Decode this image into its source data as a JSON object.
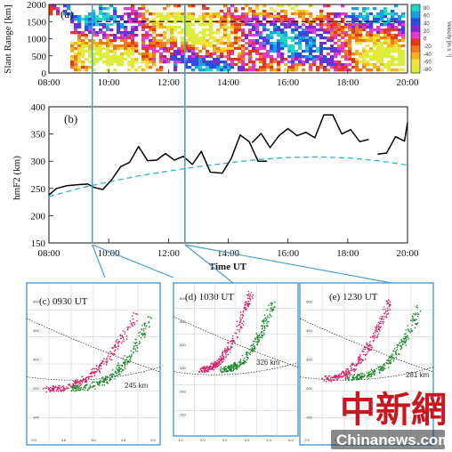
{
  "chart_data": [
    {
      "panel": "(a)",
      "type": "heatmap",
      "ylabel": "Slant Range [km]",
      "xlim": [
        8,
        20
      ],
      "ylim": [
        0,
        2000
      ],
      "x_ticks": [
        "08:00",
        "10:00",
        "12:00",
        "14:00",
        "16:00",
        "18:00",
        "20:00"
      ],
      "y_ticks": [
        "0",
        "500",
        "1000",
        "1500",
        "2000"
      ],
      "colorbar": {
        "label": "Velocity [m s⁻¹]",
        "ticks": [
          "80",
          "60",
          "40",
          "20",
          "0",
          "-20",
          "-40",
          "-60",
          "-80"
        ],
        "colors": [
          "#1fd6c2",
          "#18a0e6",
          "#2a4fe0",
          "#7a2ad6",
          "#e23ad0",
          "#e8361c",
          "#f07a18",
          "#f5b41e",
          "#f2e23a",
          "#d8f03c"
        ]
      },
      "reference_line": 1500
    },
    {
      "panel": "(b)",
      "type": "line",
      "ylabel": "hmF2 (km)",
      "xlabel": "Time UT",
      "xlim": [
        8,
        20
      ],
      "ylim": [
        150,
        400
      ],
      "x_ticks": [
        "08:00",
        "10:00",
        "12:00",
        "14:00",
        "16:00",
        "18:00",
        "20:00"
      ],
      "y_ticks": [
        "150",
        "200",
        "250",
        "300",
        "350",
        "400"
      ],
      "series": [
        {
          "style": "solid",
          "color": "#000000",
          "segments": [
            [
              [
                8.0,
                238
              ],
              [
                8.25,
                250
              ],
              [
                8.6,
                255
              ],
              [
                9.0,
                257
              ],
              [
                9.3,
                258
              ],
              [
                9.5,
                252
              ],
              [
                9.8,
                248
              ],
              [
                10.1,
                266
              ],
              [
                10.4,
                290
              ],
              [
                10.7,
                298
              ],
              [
                11.0,
                327
              ],
              [
                11.3,
                301
              ],
              [
                11.6,
                302
              ],
              [
                11.9,
                314
              ],
              [
                12.2,
                302
              ],
              [
                12.5,
                309
              ],
              [
                12.8,
                294
              ],
              [
                13.1,
                318
              ],
              [
                13.4,
                280
              ],
              [
                13.8,
                278
              ],
              [
                14.1,
                305
              ],
              [
                14.4,
                348
              ],
              [
                14.7,
                336
              ],
              [
                15.0,
                300
              ],
              [
                15.3,
                300
              ]
            ],
            [
              [
                14.8,
                334
              ],
              [
                15.1,
                351
              ],
              [
                15.4,
                325
              ],
              [
                15.7,
                347
              ],
              [
                16.0,
                360
              ],
              [
                16.3,
                347
              ],
              [
                16.6,
                353
              ],
              [
                16.9,
                343
              ],
              [
                17.2,
                385
              ],
              [
                17.5,
                385
              ],
              [
                17.8,
                350
              ],
              [
                18.1,
                358
              ],
              [
                18.4,
                336
              ],
              [
                18.7,
                340
              ]
            ],
            [
              [
                19.0,
                313
              ],
              [
                19.3,
                315
              ],
              [
                19.6,
                345
              ],
              [
                19.9,
                337
              ],
              [
                20.2,
                371
              ]
            ]
          ]
        },
        {
          "style": "dashed",
          "color": "#2bb3d6",
          "points": [
            [
              8,
              235
            ],
            [
              9,
              250
            ],
            [
              10,
              262
            ],
            [
              11,
              273
            ],
            [
              12,
              282
            ],
            [
              13,
              290
            ],
            [
              14,
              297
            ],
            [
              15,
              303
            ],
            [
              16,
              307
            ],
            [
              17,
              308
            ],
            [
              18,
              306
            ],
            [
              19,
              301
            ],
            [
              20,
              293
            ]
          ]
        }
      ],
      "markers_x": [
        9.45,
        12.55
      ]
    },
    {
      "panel": "(c)",
      "type": "scatter",
      "title": "0930 UT",
      "annotation": "245 km",
      "xlim": [
        0.9,
        5.9
      ],
      "ylim": [
        0,
        600
      ],
      "x_ticks": [
        "0.9",
        "3.6",
        "3.0",
        "4.8",
        "5.9"
      ],
      "y_ticks": [
        "500",
        "400",
        "300",
        "200",
        "100"
      ],
      "series": [
        {
          "color": "#d81b6a",
          "start": [
            1.6,
            205
          ],
          "end": [
            5.0,
            485
          ],
          "curve": 2.4
        },
        {
          "color": "#1b8a2a",
          "start": [
            2.6,
            210
          ],
          "end": [
            5.5,
            470
          ],
          "curve": 2.6
        }
      ]
    },
    {
      "panel": "(d)",
      "type": "scatter",
      "title": "1030 UT",
      "annotation": "326 km",
      "xlim": [
        1.0,
        6.3
      ],
      "ylim": [
        0,
        600
      ],
      "x_ticks": [
        "1.0",
        "2.0",
        "3.0",
        "4.0",
        "5.0",
        "6.0"
      ],
      "y_ticks": [
        "600",
        "500",
        "400",
        "300",
        "200",
        "100"
      ],
      "series": [
        {
          "color": "#d81b6a",
          "start": [
            2.2,
            260
          ],
          "end": [
            4.3,
            570
          ],
          "curve": 2.2
        },
        {
          "color": "#1b8a2a",
          "start": [
            3.0,
            260
          ],
          "end": [
            5.2,
            520
          ],
          "curve": 2.4
        }
      ]
    },
    {
      "panel": "(e)",
      "type": "scatter",
      "title": "1230 UT",
      "annotation": "281 km",
      "xlim": [
        0.9,
        5.9
      ],
      "ylim": [
        0,
        600
      ],
      "x_ticks": [
        "0.9",
        "3.6",
        "3.0",
        "4.8",
        "5.9"
      ],
      "y_ticks": [
        "500",
        "400",
        "300",
        "200",
        "100"
      ],
      "series": [
        {
          "color": "#d81b6a",
          "start": [
            1.8,
            245
          ],
          "end": [
            4.3,
            545
          ],
          "curve": 2.4
        },
        {
          "color": "#1b8a2a",
          "start": [
            2.7,
            250
          ],
          "end": [
            5.4,
            510
          ],
          "curve": 2.6
        }
      ]
    }
  ],
  "panel_labels": {
    "a": "(a)",
    "b": "(b)",
    "c": "(c)",
    "d": "(d)",
    "e": "(e)"
  },
  "watermark": {
    "cn": "中新網",
    "en": "Chinanews.com"
  }
}
